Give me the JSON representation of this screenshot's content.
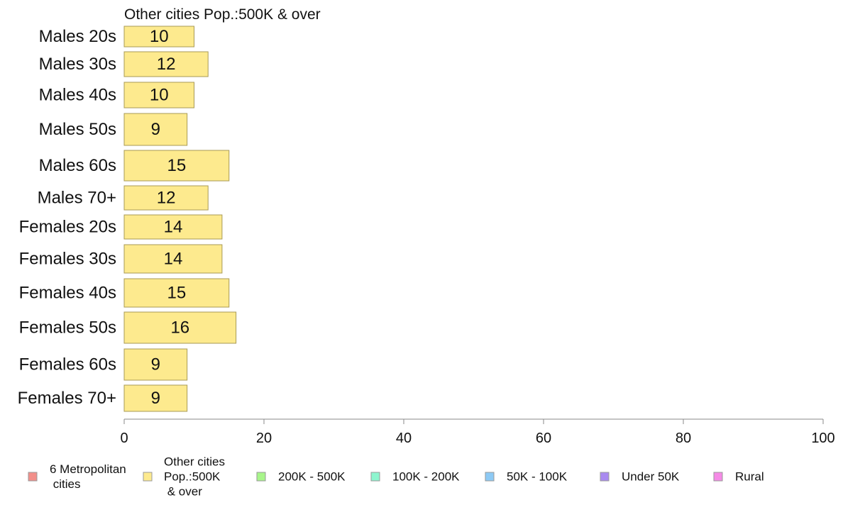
{
  "chart_data": {
    "type": "bar",
    "orientation": "horizontal",
    "title": "Other cities Pop.:500K & over",
    "categories": [
      "Males 20s",
      "Males 30s",
      "Males 40s",
      "Males 50s",
      "Males 60s",
      "Males 70+",
      "Females 20s",
      "Females 30s",
      "Females 40s",
      "Females 50s",
      "Females 60s",
      "Females 70+"
    ],
    "values": [
      10,
      12,
      10,
      9,
      15,
      12,
      14,
      14,
      15,
      16,
      9,
      9
    ],
    "data_labels": [
      "10",
      "12",
      "10",
      "9",
      "15",
      "12",
      "14",
      "14",
      "15",
      "16",
      "9",
      "9"
    ],
    "xlim": [
      0,
      100
    ],
    "x_ticks": [
      0,
      20,
      40,
      60,
      80,
      100
    ],
    "x_tick_labels": [
      "0",
      "20",
      "40",
      "60",
      "80",
      "100"
    ],
    "bar_color": "#fdea8e",
    "bar_stroke": "#a89a55",
    "grid": false,
    "legend_position": "bottom",
    "legend": [
      {
        "lines": [
          "6 Metropolitan",
          " cities"
        ],
        "color": "#f28f8a"
      },
      {
        "lines": [
          "Other cities",
          "Pop.:500K",
          " & over"
        ],
        "color": "#fdea8e"
      },
      {
        "lines": [
          "200K - 500K"
        ],
        "color": "#a8f58a"
      },
      {
        "lines": [
          "100K - 200K"
        ],
        "color": "#8ef5cf"
      },
      {
        "lines": [
          "50K - 100K"
        ],
        "color": "#8dcaf5"
      },
      {
        "lines": [
          "Under 50K"
        ],
        "color": "#a98af0"
      },
      {
        "lines": [
          "Rural"
        ],
        "color": "#f58ae6"
      }
    ]
  }
}
